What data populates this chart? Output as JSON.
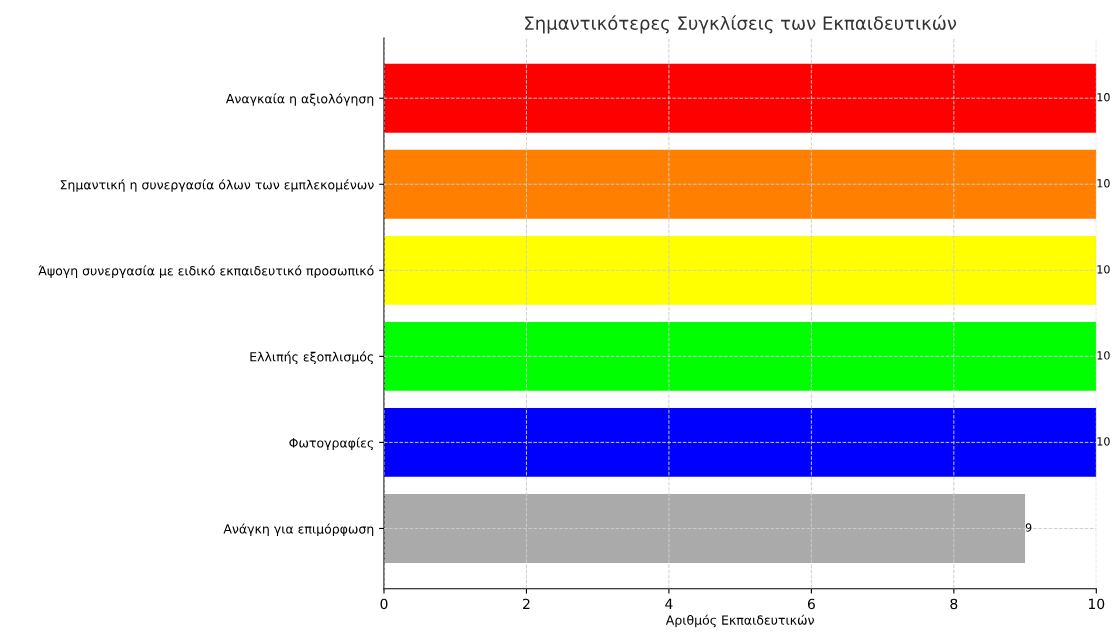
{
  "chart_data": {
    "type": "bar",
    "orientation": "horizontal",
    "title": "Σημαντικότερες Συγκλίσεις των Εκπαιδευτικών",
    "xlabel": "Αριθμός Εκπαιδευτικών",
    "categories": [
      "Αναγκαία η αξιολόγηση",
      "Σημαντική η συνεργασία όλων των εμπλεκομένων",
      "Άψογη συνεργασία με ειδικό εκπαιδευτικό προσωπικό",
      "Ελλιπής εξοπλισμός",
      "Φωτογραφίες",
      "Ανάγκη για επιμόρφωση"
    ],
    "values": [
      10,
      10,
      10,
      10,
      10,
      9
    ],
    "colors": [
      "#ff0000",
      "#ff7f00",
      "#ffff00",
      "#00ff00",
      "#0000ff",
      "#aaaaaa"
    ],
    "xlim": [
      0,
      10
    ],
    "xticks": [
      0,
      2,
      4,
      6,
      8,
      10
    ],
    "grid": true,
    "data_labels": true
  }
}
